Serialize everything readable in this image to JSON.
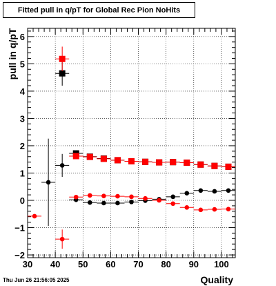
{
  "page": {
    "title": "Fitted pull in q/pT for Global Rec Pion NoHits",
    "timestamp": "Thu Jun 26 21:56:05 2025"
  },
  "colors": {
    "black": "#000000",
    "red": "#ff0000",
    "grid": "#000000"
  },
  "chart_data": {
    "type": "scatter",
    "title": "Fitted pull in q/pT for Global Rec Pion NoHits",
    "xlabel": "Quality",
    "ylabel": "pull in q/pT",
    "xlim": [
      30,
      105
    ],
    "ylim": [
      -2.1,
      6.3
    ],
    "xticks": [
      30,
      40,
      50,
      60,
      70,
      80,
      90,
      100
    ],
    "yticks": [
      -2,
      -1,
      0,
      1,
      2,
      3,
      4,
      5,
      6
    ],
    "grid": true,
    "series": [
      {
        "marker": "square",
        "color": "black",
        "points": [
          {
            "x": 42.5,
            "y": 4.65,
            "yerr": 0.45
          },
          {
            "x": 47.5,
            "y": 1.72,
            "yerr": 0.05
          },
          {
            "x": 52.5,
            "y": 1.6,
            "yerr": 0.04
          },
          {
            "x": 57.5,
            "y": 1.53,
            "yerr": 0.04
          },
          {
            "x": 62.5,
            "y": 1.47,
            "yerr": 0.04
          },
          {
            "x": 67.5,
            "y": 1.43,
            "yerr": 0.04
          },
          {
            "x": 72.5,
            "y": 1.41,
            "yerr": 0.04
          },
          {
            "x": 77.5,
            "y": 1.39,
            "yerr": 0.04
          },
          {
            "x": 82.5,
            "y": 1.4,
            "yerr": 0.04
          },
          {
            "x": 87.5,
            "y": 1.38,
            "yerr": 0.04
          },
          {
            "x": 92.5,
            "y": 1.31,
            "yerr": 0.04
          },
          {
            "x": 97.5,
            "y": 1.26,
            "yerr": 0.04
          },
          {
            "x": 102.5,
            "y": 1.23,
            "yerr": 0.04
          }
        ]
      },
      {
        "marker": "square",
        "color": "red",
        "points": [
          {
            "x": 42.5,
            "y": 5.18,
            "yerr": 0.45
          },
          {
            "x": 47.5,
            "y": 1.62,
            "yerr": 0.05
          },
          {
            "x": 52.5,
            "y": 1.59,
            "yerr": 0.04
          },
          {
            "x": 57.5,
            "y": 1.52,
            "yerr": 0.04
          },
          {
            "x": 62.5,
            "y": 1.47,
            "yerr": 0.04
          },
          {
            "x": 67.5,
            "y": 1.43,
            "yerr": 0.04
          },
          {
            "x": 72.5,
            "y": 1.41,
            "yerr": 0.04
          },
          {
            "x": 77.5,
            "y": 1.39,
            "yerr": 0.04
          },
          {
            "x": 82.5,
            "y": 1.4,
            "yerr": 0.04
          },
          {
            "x": 87.5,
            "y": 1.38,
            "yerr": 0.04
          },
          {
            "x": 92.5,
            "y": 1.31,
            "yerr": 0.04
          },
          {
            "x": 97.5,
            "y": 1.26,
            "yerr": 0.04
          },
          {
            "x": 102.5,
            "y": 1.23,
            "yerr": 0.04
          }
        ]
      },
      {
        "marker": "circle",
        "color": "black",
        "points": [
          {
            "x": 37.5,
            "y": 0.66,
            "yerr": 1.6
          },
          {
            "x": 42.5,
            "y": 1.28,
            "yerr": 0.42
          },
          {
            "x": 47.5,
            "y": 0.02,
            "yerr": 0.05
          },
          {
            "x": 52.5,
            "y": -0.08,
            "yerr": 0.04
          },
          {
            "x": 57.5,
            "y": -0.1,
            "yerr": 0.04
          },
          {
            "x": 62.5,
            "y": -0.1,
            "yerr": 0.04
          },
          {
            "x": 67.5,
            "y": -0.06,
            "yerr": 0.04
          },
          {
            "x": 72.5,
            "y": -0.01,
            "yerr": 0.04
          },
          {
            "x": 77.5,
            "y": 0.04,
            "yerr": 0.04
          },
          {
            "x": 82.5,
            "y": 0.13,
            "yerr": 0.04
          },
          {
            "x": 87.5,
            "y": 0.26,
            "yerr": 0.04
          },
          {
            "x": 92.5,
            "y": 0.36,
            "yerr": 0.04
          },
          {
            "x": 97.5,
            "y": 0.33,
            "yerr": 0.04
          },
          {
            "x": 102.5,
            "y": 0.36,
            "yerr": 0.04
          }
        ]
      },
      {
        "marker": "circle",
        "color": "red",
        "points": [
          {
            "x": 32.5,
            "y": -0.58,
            "yerr": 0.05
          },
          {
            "x": 42.5,
            "y": -1.42,
            "yerr": 0.35
          },
          {
            "x": 47.5,
            "y": 0.12,
            "yerr": 0.05
          },
          {
            "x": 52.5,
            "y": 0.18,
            "yerr": 0.04
          },
          {
            "x": 57.5,
            "y": 0.16,
            "yerr": 0.04
          },
          {
            "x": 62.5,
            "y": 0.15,
            "yerr": 0.04
          },
          {
            "x": 67.5,
            "y": 0.13,
            "yerr": 0.04
          },
          {
            "x": 72.5,
            "y": 0.07,
            "yerr": 0.04
          },
          {
            "x": 77.5,
            "y": 0.0,
            "yerr": 0.04
          },
          {
            "x": 82.5,
            "y": -0.12,
            "yerr": 0.04
          },
          {
            "x": 87.5,
            "y": -0.26,
            "yerr": 0.04
          },
          {
            "x": 92.5,
            "y": -0.35,
            "yerr": 0.04
          },
          {
            "x": 97.5,
            "y": -0.33,
            "yerr": 0.04
          },
          {
            "x": 102.5,
            "y": -0.32,
            "yerr": 0.04
          }
        ]
      }
    ]
  }
}
